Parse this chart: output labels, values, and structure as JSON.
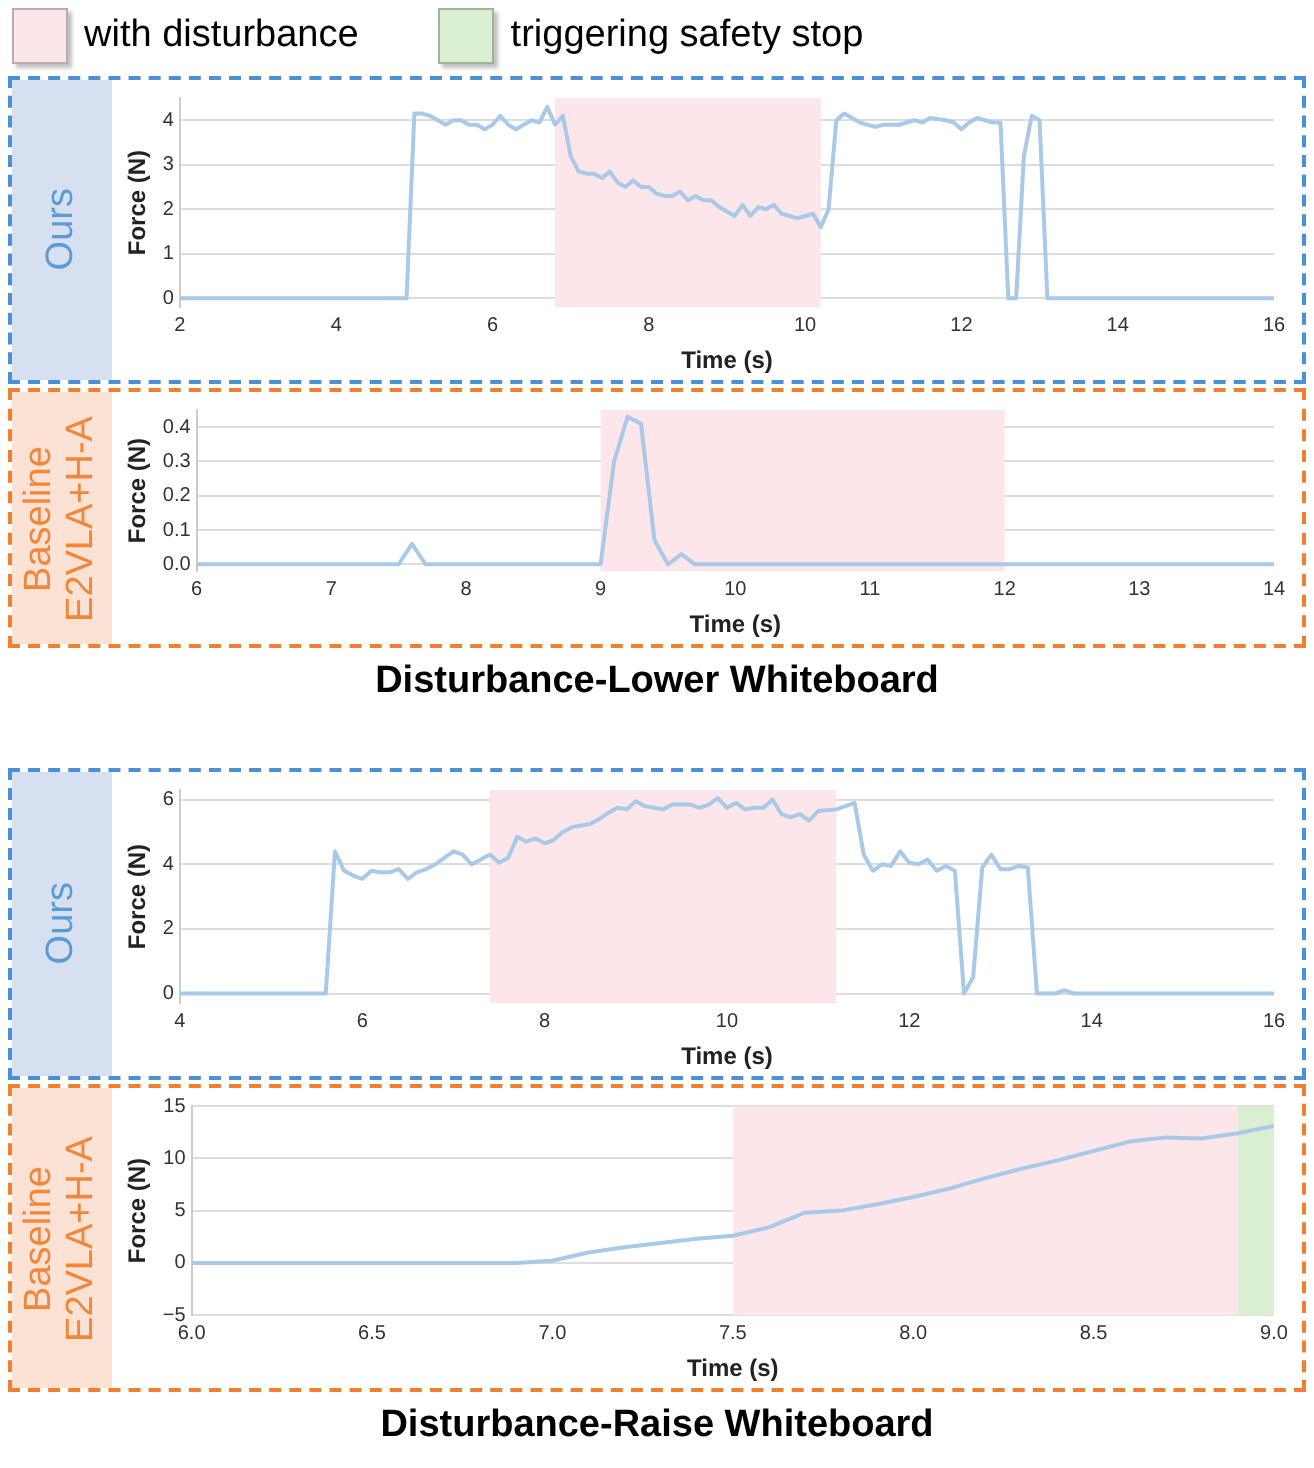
{
  "chart_data": [
    {
      "type": "line",
      "title": "Ours",
      "xlabel": "Time (s)",
      "ylabel": "Force (N)",
      "xlim": [
        2,
        16
      ],
      "xticks": [
        2,
        4,
        6,
        8,
        10,
        12,
        14,
        16
      ],
      "ylim": [
        -0.2,
        4.5
      ],
      "yticks": [
        0,
        1,
        2,
        3,
        4
      ],
      "grid": "y",
      "bands": [
        {
          "axis": "x",
          "from": 6.8,
          "to": 10.2,
          "label": "with disturbance",
          "color": "#fde6e9"
        }
      ],
      "series": [
        {
          "color": "#a9c9e8",
          "x": [
            2,
            4.9,
            5.0,
            5.1,
            5.2,
            5.3,
            5.4,
            5.5,
            5.6,
            5.7,
            5.8,
            5.9,
            6.0,
            6.1,
            6.2,
            6.3,
            6.4,
            6.5,
            6.6,
            6.7,
            6.8,
            6.9,
            7.0,
            7.1,
            7.2,
            7.3,
            7.4,
            7.5,
            7.6,
            7.7,
            7.8,
            7.9,
            8.0,
            8.1,
            8.2,
            8.3,
            8.4,
            8.5,
            8.6,
            8.7,
            8.8,
            8.9,
            9.0,
            9.1,
            9.2,
            9.3,
            9.4,
            9.5,
            9.6,
            9.7,
            9.8,
            9.9,
            10.0,
            10.1,
            10.2,
            10.3,
            10.4,
            10.5,
            10.6,
            10.7,
            10.8,
            10.9,
            11.0,
            11.2,
            11.4,
            11.5,
            11.6,
            11.8,
            11.9,
            12.0,
            12.1,
            12.2,
            12.4,
            12.5,
            12.6,
            12.7,
            12.8,
            12.9,
            13.0,
            13.1,
            16
          ],
          "values": [
            0,
            0,
            4.15,
            4.15,
            4.1,
            4.0,
            3.9,
            4.0,
            4.0,
            3.9,
            3.9,
            3.8,
            3.9,
            4.1,
            3.9,
            3.8,
            3.9,
            4.0,
            3.95,
            4.3,
            3.9,
            4.1,
            3.2,
            2.85,
            2.8,
            2.8,
            2.7,
            2.85,
            2.6,
            2.5,
            2.65,
            2.5,
            2.5,
            2.35,
            2.3,
            2.3,
            2.4,
            2.2,
            2.3,
            2.2,
            2.2,
            2.05,
            1.95,
            1.85,
            2.1,
            1.85,
            2.05,
            2.0,
            2.1,
            1.9,
            1.85,
            1.8,
            1.85,
            1.9,
            1.6,
            2.0,
            4.0,
            4.15,
            4.05,
            3.95,
            3.9,
            3.85,
            3.9,
            3.9,
            4.0,
            3.95,
            4.05,
            4.0,
            3.95,
            3.8,
            3.95,
            4.05,
            3.95,
            3.95,
            0,
            0,
            3.2,
            4.1,
            4.0,
            0,
            0
          ]
        }
      ]
    },
    {
      "type": "line",
      "title": "Baseline\nE2VLA+H-A",
      "xlabel": "Time (s)",
      "ylabel": "Force (N)",
      "xlim": [
        6,
        14
      ],
      "xticks": [
        6,
        7,
        8,
        9,
        10,
        11,
        12,
        13,
        14
      ],
      "ylim": [
        -0.02,
        0.45
      ],
      "yticks": [
        {
          "value": 0,
          "label": "0.0"
        },
        0.1,
        0.2,
        0.3,
        0.4
      ],
      "grid": "y",
      "annotations": [
        "Disturbance-Lower Whiteboard"
      ],
      "bands": [
        {
          "axis": "x",
          "from": 9,
          "to": 12,
          "color": "#fde6e9"
        }
      ],
      "series": [
        {
          "color": "#a9c9e8",
          "x": [
            6,
            7.5,
            7.6,
            7.7,
            9.0,
            9.1,
            9.2,
            9.3,
            9.4,
            9.5,
            9.6,
            9.7,
            14
          ],
          "values": [
            0,
            0,
            0.06,
            0,
            0,
            0.3,
            0.43,
            0.41,
            0.07,
            0,
            0.03,
            0,
            0
          ]
        }
      ]
    },
    {
      "type": "line",
      "title": "Ours",
      "xlabel": "Time (s)",
      "ylabel": "Force (N)",
      "xlim": [
        4,
        16
      ],
      "xticks": [
        4,
        6,
        8,
        10,
        12,
        14,
        16
      ],
      "ylim": [
        -0.3,
        6.3
      ],
      "yticks": [
        0,
        2,
        4,
        6
      ],
      "grid": "y",
      "bands": [
        {
          "axis": "x",
          "from": 7.4,
          "to": 11.2,
          "color": "#fde6e9"
        }
      ],
      "series": [
        {
          "color": "#a9c9e8",
          "x": [
            4,
            5.6,
            5.7,
            5.8,
            5.9,
            6.0,
            6.1,
            6.2,
            6.3,
            6.4,
            6.5,
            6.6,
            6.7,
            6.8,
            6.9,
            7.0,
            7.1,
            7.2,
            7.3,
            7.4,
            7.5,
            7.6,
            7.7,
            7.8,
            7.9,
            8.0,
            8.1,
            8.2,
            8.3,
            8.4,
            8.5,
            8.6,
            8.7,
            8.8,
            8.9,
            9.0,
            9.1,
            9.2,
            9.3,
            9.4,
            9.5,
            9.6,
            9.7,
            9.8,
            9.9,
            10.0,
            10.1,
            10.2,
            10.3,
            10.4,
            10.5,
            10.6,
            10.7,
            10.8,
            10.9,
            11.0,
            11.2,
            11.4,
            11.5,
            11.6,
            11.7,
            11.8,
            11.9,
            12.0,
            12.1,
            12.2,
            12.3,
            12.4,
            12.5,
            12.6,
            12.7,
            12.8,
            12.9,
            13.0,
            13.1,
            13.2,
            13.3,
            13.4,
            13.6,
            13.7,
            13.8,
            16
          ],
          "values": [
            0,
            0,
            4.4,
            3.8,
            3.65,
            3.55,
            3.8,
            3.75,
            3.75,
            3.85,
            3.55,
            3.75,
            3.85,
            4.0,
            4.2,
            4.4,
            4.3,
            4.0,
            4.15,
            4.3,
            4.05,
            4.2,
            4.85,
            4.7,
            4.8,
            4.65,
            4.75,
            5.0,
            5.15,
            5.2,
            5.25,
            5.4,
            5.6,
            5.75,
            5.7,
            5.95,
            5.8,
            5.75,
            5.7,
            5.85,
            5.85,
            5.85,
            5.75,
            5.85,
            6.05,
            5.75,
            5.9,
            5.7,
            5.75,
            5.75,
            6.0,
            5.55,
            5.45,
            5.55,
            5.35,
            5.65,
            5.7,
            5.9,
            4.3,
            3.8,
            4.0,
            3.95,
            4.4,
            4.05,
            4.0,
            4.15,
            3.8,
            3.95,
            3.8,
            0,
            0.5,
            3.9,
            4.3,
            3.85,
            3.85,
            3.95,
            3.9,
            0,
            0,
            0.1,
            0,
            0
          ]
        }
      ]
    },
    {
      "type": "line",
      "title": "Baseline\nE2VLA+H-A",
      "xlabel": "Time (s)",
      "ylabel": "Force (N)",
      "xlim": [
        6,
        9
      ],
      "xticks": [
        {
          "value": 6,
          "label": "6.0"
        },
        {
          "value": 6.5,
          "label": "6.5"
        },
        {
          "value": 7,
          "label": "7.0"
        },
        {
          "value": 7.5,
          "label": "7.5"
        },
        {
          "value": 8,
          "label": "8.0"
        },
        {
          "value": 8.5,
          "label": "8.5"
        },
        {
          "value": 9,
          "label": "9.0"
        }
      ],
      "ylim": [
        -5,
        15
      ],
      "yticks": [
        {
          "value": -5,
          "label": "−5"
        },
        0,
        5,
        10,
        15
      ],
      "grid": "y",
      "annotations": [
        "Disturbance-Raise Whiteboard"
      ],
      "bands": [
        {
          "axis": "x",
          "from": 7.5,
          "to": 8.9,
          "color": "#fde6e9"
        },
        {
          "axis": "x",
          "from": 8.9,
          "to": 9.0,
          "label": "triggering safety stop",
          "color": "#d9efcf"
        }
      ],
      "series": [
        {
          "color": "#a9c9e8",
          "x": [
            6,
            6.9,
            7.0,
            7.1,
            7.2,
            7.3,
            7.4,
            7.5,
            7.6,
            7.7,
            7.8,
            7.9,
            8.0,
            8.1,
            8.2,
            8.3,
            8.4,
            8.5,
            8.6,
            8.7,
            8.8,
            8.9,
            9.0
          ],
          "values": [
            0,
            0,
            0.2,
            1.0,
            1.5,
            1.9,
            2.3,
            2.6,
            3.4,
            4.8,
            5.0,
            5.6,
            6.3,
            7.1,
            8.1,
            9.0,
            9.8,
            10.7,
            11.6,
            12.0,
            11.9,
            12.4,
            13.1
          ]
        }
      ]
    }
  ]
}
